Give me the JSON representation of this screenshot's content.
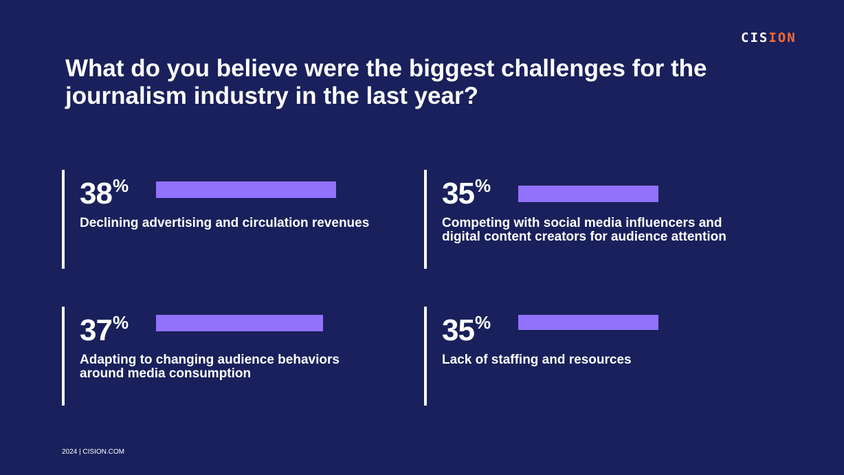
{
  "logo": {
    "text_a": "CIS",
    "text_b": "ION"
  },
  "chart_data": {
    "type": "bar",
    "title": "What do you believe were the biggest challenges for the journalism industry in the last year?",
    "unit": "%",
    "categories": [
      "Declining advertising and circulation revenues",
      "Competing with social media influencers and digital content creators for audience attention",
      "Adapting to changing audience behaviors around media consumption",
      "Lack of staffing and resources"
    ],
    "values": [
      38,
      35,
      37,
      35
    ],
    "value_labels": [
      "38",
      "35",
      "37",
      "35"
    ],
    "percent_sign": "%",
    "bar_color": "#9271fb"
  },
  "footer": "2024 | CISION.COM"
}
